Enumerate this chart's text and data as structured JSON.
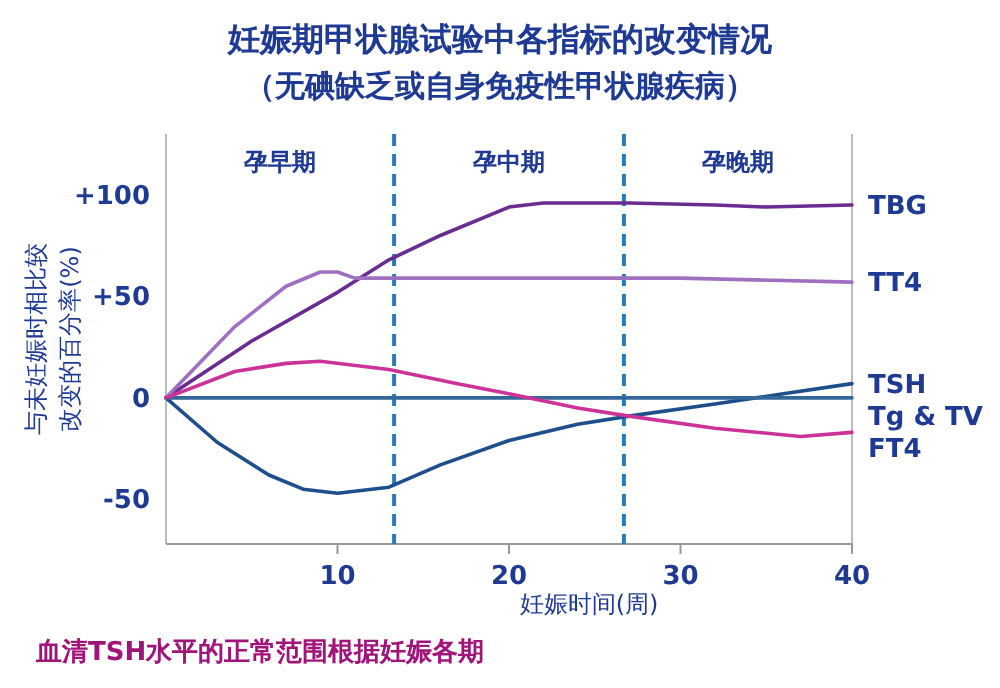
{
  "chart_data": {
    "type": "line",
    "title": "妊娠期甲状腺试验中各指标的改变情况",
    "subtitle": "（无碘缺乏或自身免疫性甲状腺疾病）",
    "xlabel": "妊娠时间(周)",
    "ylabel": "与未妊娠时相比较改变的百分率(%)",
    "xlim": [
      0,
      40
    ],
    "xticks": [
      10,
      20,
      30,
      40
    ],
    "ylim": [
      -72,
      130
    ],
    "yticks": [
      {
        "value": 100,
        "label": "+100"
      },
      {
        "value": 50,
        "label": "+50"
      },
      0,
      -50
    ],
    "grid": false,
    "marker": "none",
    "line_style": "solid",
    "series": [
      {
        "name": "TBG",
        "color": "#6a2c91",
        "x": [
          0,
          5,
          10,
          13,
          16,
          20,
          22,
          27,
          32,
          35,
          40
        ],
        "values": [
          0,
          28,
          52,
          68,
          80,
          94,
          96,
          96,
          95,
          94,
          95
        ]
      },
      {
        "name": "TT4",
        "color": "#a070c0",
        "x": [
          0,
          4,
          7,
          9,
          10,
          11,
          13,
          20,
          30,
          40
        ],
        "values": [
          0,
          35,
          55,
          62,
          62,
          59,
          59,
          59,
          59,
          57
        ]
      },
      {
        "name": "TSH",
        "color": "#1f4e8c",
        "x": [
          0,
          3,
          6,
          8,
          10,
          13,
          16,
          20,
          24,
          27,
          32,
          36,
          40
        ],
        "values": [
          0,
          -22,
          -38,
          -45,
          -47,
          -44,
          -33,
          -21,
          -13,
          -9,
          -3,
          2,
          7
        ]
      },
      {
        "name": "Tg & TV",
        "color": "#336699",
        "x": [
          0,
          40
        ],
        "values": [
          0,
          0
        ]
      },
      {
        "name": "FT4",
        "color": "#cc3399",
        "x": [
          0,
          4,
          7,
          9,
          13,
          17,
          20,
          24,
          27,
          32,
          37,
          40
        ],
        "values": [
          0,
          13,
          17,
          18,
          14,
          7,
          2,
          -5,
          -9,
          -15,
          -19,
          -17
        ]
      }
    ],
    "ref_lines": [
      {
        "axis": "x",
        "value": 13.3,
        "color": "#2a7ab8",
        "line_style": "dashed"
      },
      {
        "axis": "x",
        "value": 26.7,
        "color": "#2a7ab8",
        "line_style": "dashed"
      }
    ],
    "annotations": [
      "孕早期",
      "孕中期",
      "孕晚期",
      "血清TSH水平的正常范围根据妊娠各期"
    ]
  }
}
